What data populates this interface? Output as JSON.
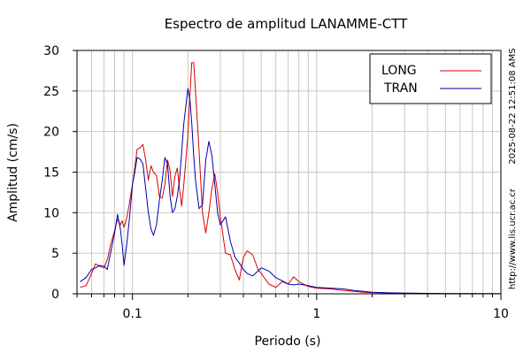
{
  "chart_data": {
    "type": "line",
    "title": "Espectro de amplitud LANAMME-CTT",
    "xlabel": "Periodo (s)",
    "ylabel": "Amplitud (cm/s)",
    "x_scale": "log",
    "xlim": [
      0.05,
      10
    ],
    "ylim": [
      0,
      30
    ],
    "x_ticks": [
      0.1,
      1,
      10
    ],
    "x_tick_labels": [
      "0.1",
      "1",
      "10"
    ],
    "y_ticks": [
      0,
      5,
      10,
      15,
      20,
      25,
      30
    ],
    "y_tick_labels": [
      "0",
      "5",
      "10",
      "15",
      "20",
      "25",
      "30"
    ],
    "grid": true,
    "legend_position": "top-right",
    "side_text_top": "2025-08-22 12:51:08 AMS",
    "side_text_bottom": "http://www.lis.ucr.ac.cr",
    "series": [
      {
        "name": "LONG",
        "color": "#dd0000",
        "x": [
          0.052,
          0.056,
          0.06,
          0.063,
          0.066,
          0.07,
          0.073,
          0.076,
          0.08,
          0.083,
          0.086,
          0.088,
          0.09,
          0.093,
          0.096,
          0.1,
          0.103,
          0.106,
          0.11,
          0.114,
          0.118,
          0.122,
          0.126,
          0.13,
          0.135,
          0.14,
          0.145,
          0.15,
          0.155,
          0.16,
          0.165,
          0.17,
          0.175,
          0.18,
          0.185,
          0.19,
          0.2,
          0.205,
          0.21,
          0.215,
          0.22,
          0.23,
          0.24,
          0.25,
          0.26,
          0.27,
          0.28,
          0.29,
          0.3,
          0.32,
          0.34,
          0.36,
          0.38,
          0.4,
          0.42,
          0.45,
          0.48,
          0.5,
          0.55,
          0.6,
          0.65,
          0.7,
          0.75,
          0.8,
          0.9,
          1.0,
          1.2,
          1.4,
          1.6,
          1.8,
          2.0,
          2.5,
          3.0,
          4.0,
          5.0,
          7.0,
          10.0
        ],
        "y": [
          0.8,
          1.0,
          2.5,
          3.7,
          3.4,
          3.2,
          4.2,
          6.0,
          7.8,
          9.2,
          8.5,
          9.0,
          8.2,
          9.3,
          11.0,
          13.5,
          15.5,
          17.8,
          18.0,
          18.4,
          16.5,
          14.0,
          15.8,
          15.0,
          14.6,
          12.0,
          11.8,
          13.5,
          16.5,
          15.2,
          12.0,
          14.5,
          15.5,
          13.0,
          10.8,
          13.5,
          19.5,
          24.5,
          28.5,
          28.5,
          25.0,
          17.5,
          10.0,
          7.5,
          10.0,
          13.0,
          14.8,
          12.5,
          9.5,
          5.0,
          4.8,
          3.0,
          1.7,
          4.5,
          5.3,
          4.8,
          3.0,
          2.5,
          1.2,
          0.8,
          1.5,
          1.2,
          2.1,
          1.5,
          0.9,
          0.7,
          0.6,
          0.4,
          0.3,
          0.2,
          0.15,
          0.1,
          0.08,
          0.05,
          0.03,
          0.02,
          0.01
        ]
      },
      {
        "name": "TRAN",
        "color": "#0000aa",
        "x": [
          0.052,
          0.056,
          0.06,
          0.063,
          0.066,
          0.07,
          0.073,
          0.076,
          0.08,
          0.083,
          0.086,
          0.088,
          0.09,
          0.093,
          0.096,
          0.1,
          0.103,
          0.106,
          0.11,
          0.114,
          0.118,
          0.122,
          0.126,
          0.13,
          0.135,
          0.14,
          0.145,
          0.15,
          0.155,
          0.16,
          0.165,
          0.17,
          0.175,
          0.18,
          0.185,
          0.19,
          0.2,
          0.205,
          0.21,
          0.215,
          0.22,
          0.23,
          0.24,
          0.25,
          0.26,
          0.27,
          0.28,
          0.29,
          0.3,
          0.32,
          0.34,
          0.36,
          0.38,
          0.4,
          0.42,
          0.45,
          0.48,
          0.5,
          0.55,
          0.6,
          0.65,
          0.7,
          0.75,
          0.8,
          0.9,
          1.0,
          1.2,
          1.4,
          1.6,
          1.8,
          2.0,
          2.5,
          3.0,
          4.0,
          5.0,
          7.0,
          10.0
        ],
        "y": [
          1.5,
          2.0,
          3.0,
          3.2,
          3.5,
          3.4,
          3.0,
          5.0,
          7.5,
          9.8,
          8.0,
          6.0,
          3.5,
          6.0,
          9.0,
          13.5,
          15.0,
          16.8,
          16.6,
          16.0,
          13.0,
          10.0,
          8.0,
          7.2,
          8.5,
          11.5,
          14.0,
          16.8,
          16.0,
          12.0,
          10.0,
          10.5,
          12.0,
          14.0,
          17.5,
          21.0,
          25.3,
          24.0,
          21.0,
          17.0,
          14.0,
          10.5,
          11.0,
          16.5,
          18.8,
          17.0,
          13.5,
          10.0,
          8.5,
          9.5,
          6.5,
          4.5,
          3.8,
          3.0,
          2.5,
          2.2,
          2.8,
          3.2,
          2.8,
          2.0,
          1.6,
          1.2,
          1.1,
          1.2,
          1.0,
          0.8,
          0.7,
          0.6,
          0.4,
          0.3,
          0.2,
          0.12,
          0.08,
          0.05,
          0.03,
          0.02,
          0.01
        ]
      }
    ]
  }
}
